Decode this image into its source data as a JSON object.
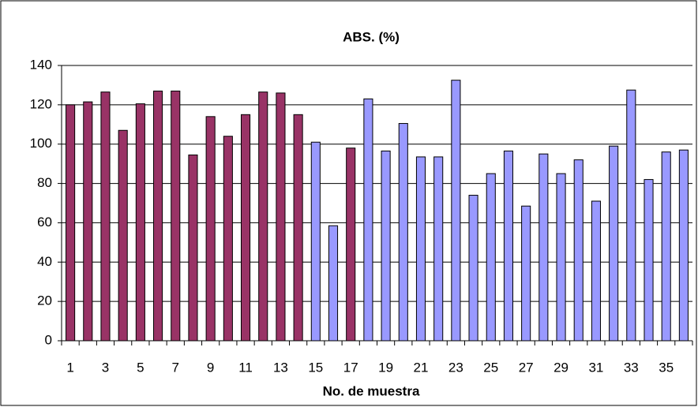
{
  "chart_data": {
    "type": "bar",
    "title": "ABS. (%)",
    "x_label": "No. de muestra",
    "categories": [
      "1",
      null,
      "3",
      null,
      "5",
      null,
      "7",
      null,
      "9",
      null,
      "11",
      null,
      "13",
      null,
      "15",
      null,
      "17",
      null,
      "19",
      null,
      "21",
      null,
      "23",
      null,
      "25",
      null,
      "27",
      null,
      "29",
      null,
      "31",
      null,
      "33",
      null,
      "35",
      null
    ],
    "values": [
      120,
      121.5,
      126.5,
      107,
      120.5,
      127,
      127,
      94.5,
      114,
      104,
      115,
      126.5,
      126,
      115,
      101,
      58.5,
      98,
      123,
      96.5,
      110.5,
      93.5,
      93.5,
      132.5,
      74,
      85,
      96.5,
      68.5,
      95,
      85,
      92,
      71,
      99,
      127.5,
      82,
      96,
      97
    ],
    "colors": [
      "#993366",
      "#993366",
      "#993366",
      "#993366",
      "#993366",
      "#993366",
      "#993366",
      "#993366",
      "#993366",
      "#993366",
      "#993366",
      "#993366",
      "#993366",
      "#993366",
      "#9999ff",
      "#9999ff",
      "#993366",
      "#9999ff",
      "#9999ff",
      "#9999ff",
      "#9999ff",
      "#9999ff",
      "#9999ff",
      "#9999ff",
      "#9999ff",
      "#9999ff",
      "#9999ff",
      "#9999ff",
      "#9999ff",
      "#9999ff",
      "#9999ff",
      "#9999ff",
      "#9999ff",
      "#9999ff",
      "#9999ff",
      "#9999ff"
    ],
    "ylim": [
      0,
      140
    ],
    "yticks": [
      0,
      20,
      40,
      60,
      80,
      100,
      120,
      140
    ],
    "grid": true
  }
}
